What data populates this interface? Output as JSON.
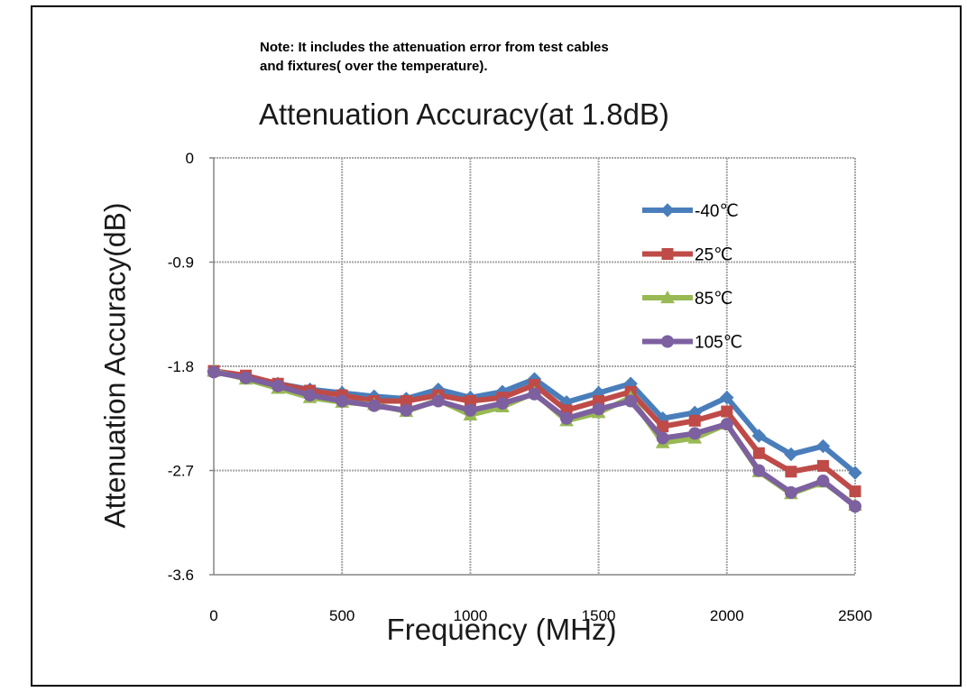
{
  "note": {
    "line1": "Note: It includes the attenuation error from test cables",
    "line2": "and fixtures( over the temperature)."
  },
  "chart_data": {
    "type": "line",
    "title": "Attenuation Accuracy(at 1.8dB)",
    "xlabel": "Frequency (MHz)",
    "ylabel": "Attenuation Accuracy(dB)",
    "xlim": [
      0,
      2500
    ],
    "ylim": [
      -3.6,
      0
    ],
    "xticks": [
      0,
      500,
      1000,
      1500,
      2000,
      2500
    ],
    "xtick_labels": [
      "0",
      "500",
      "1000",
      "1500",
      "2000",
      "2500"
    ],
    "yticks": [
      0,
      -0.9,
      -1.8,
      -2.7,
      -3.6
    ],
    "ytick_labels": [
      "0",
      "-0.9",
      "-1.8",
      "-2.7",
      "-3.6"
    ],
    "grid": true,
    "legend_position": "top-right",
    "x": [
      0,
      125,
      250,
      375,
      500,
      625,
      750,
      875,
      1000,
      1125,
      1250,
      1375,
      1500,
      1625,
      1750,
      1875,
      2000,
      2125,
      2250,
      2375,
      2500
    ],
    "series": [
      {
        "name": "-40℃",
        "color": "#4a7ebb",
        "marker": "diamond",
        "values": [
          -1.84,
          -1.9,
          -1.95,
          -2.0,
          -2.03,
          -2.06,
          -2.08,
          -2.0,
          -2.07,
          -2.02,
          -1.91,
          -2.11,
          -2.03,
          -1.95,
          -2.25,
          -2.2,
          -2.07,
          -2.4,
          -2.56,
          -2.49,
          -2.72
        ]
      },
      {
        "name": "25℃",
        "color": "#be4b48",
        "marker": "square",
        "values": [
          -1.84,
          -1.88,
          -1.95,
          -2.01,
          -2.05,
          -2.1,
          -2.1,
          -2.05,
          -2.1,
          -2.07,
          -1.96,
          -2.18,
          -2.1,
          -2.02,
          -2.32,
          -2.27,
          -2.19,
          -2.55,
          -2.71,
          -2.66,
          -2.88
        ]
      },
      {
        "name": "85℃",
        "color": "#98b954",
        "marker": "triangle",
        "values": [
          -1.84,
          -1.91,
          -1.99,
          -2.07,
          -2.11,
          -2.13,
          -2.19,
          -2.09,
          -2.22,
          -2.15,
          -2.03,
          -2.27,
          -2.2,
          -2.07,
          -2.46,
          -2.42,
          -2.3,
          -2.71,
          -2.9,
          -2.8,
          -3.0
        ]
      },
      {
        "name": "105℃",
        "color": "#7d60a0",
        "marker": "circle",
        "values": [
          -1.85,
          -1.9,
          -1.97,
          -2.05,
          -2.1,
          -2.14,
          -2.18,
          -2.1,
          -2.18,
          -2.12,
          -2.04,
          -2.25,
          -2.17,
          -2.1,
          -2.42,
          -2.38,
          -2.3,
          -2.7,
          -2.89,
          -2.79,
          -3.01
        ]
      }
    ]
  }
}
